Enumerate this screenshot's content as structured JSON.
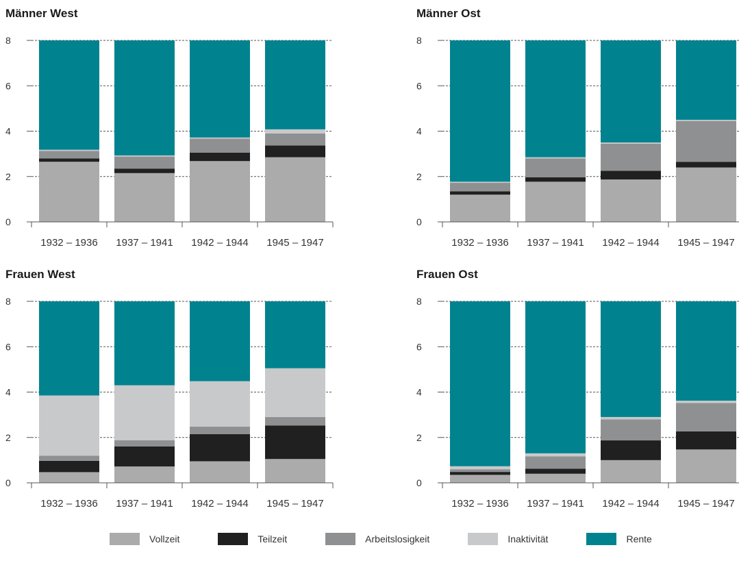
{
  "colors": {
    "Vollzeit": "#ababab",
    "Teilzeit": "#202020",
    "Arbeitslosigkeit": "#8f9092",
    "Inaktivität": "#c8c9ca",
    "Rente": "#00838f"
  },
  "legend": [
    "Vollzeit",
    "Teilzeit",
    "Arbeitslosigkeit",
    "Inaktivität",
    "Rente"
  ],
  "chart_data": [
    {
      "type": "bar",
      "stacked": true,
      "title": "Männer West",
      "categories": [
        "1932 – 1936",
        "1937 – 1941",
        "1942 – 1944",
        "1945 – 1947"
      ],
      "ylim": [
        0,
        8
      ],
      "yticks": [
        "0",
        "2",
        "4",
        "6",
        "8"
      ],
      "grid": true,
      "series": [
        {
          "name": "Vollzeit",
          "values": [
            2.65,
            2.15,
            2.68,
            2.85
          ]
        },
        {
          "name": "Teilzeit",
          "values": [
            0.15,
            0.2,
            0.37,
            0.52
          ]
        },
        {
          "name": "Arbeitslosigkeit",
          "values": [
            0.33,
            0.53,
            0.62,
            0.53
          ]
        },
        {
          "name": "Inaktivität",
          "values": [
            0.05,
            0.05,
            0.05,
            0.18
          ]
        },
        {
          "name": "Rente",
          "values": [
            4.82,
            5.07,
            4.28,
            3.92
          ]
        }
      ]
    },
    {
      "type": "bar",
      "stacked": true,
      "title": "Männer Ost",
      "categories": [
        "1932 – 1936",
        "1937 – 1941",
        "1942 – 1944",
        "1945 – 1947"
      ],
      "ylim": [
        0,
        8
      ],
      "yticks": [
        "0",
        "2",
        "4",
        "6",
        "8"
      ],
      "grid": true,
      "series": [
        {
          "name": "Vollzeit",
          "values": [
            1.2,
            1.77,
            1.87,
            2.4
          ]
        },
        {
          "name": "Teilzeit",
          "values": [
            0.15,
            0.2,
            0.38,
            0.25
          ]
        },
        {
          "name": "Arbeitslosigkeit",
          "values": [
            0.37,
            0.83,
            1.2,
            1.8
          ]
        },
        {
          "name": "Inaktivität",
          "values": [
            0.05,
            0.05,
            0.05,
            0.05
          ]
        },
        {
          "name": "Rente",
          "values": [
            6.23,
            5.15,
            4.5,
            3.5
          ]
        }
      ]
    },
    {
      "type": "bar",
      "stacked": true,
      "title": "Frauen West",
      "categories": [
        "1932 – 1936",
        "1937 – 1941",
        "1942 – 1944",
        "1945 – 1947"
      ],
      "ylim": [
        0,
        8
      ],
      "yticks": [
        "0",
        "2",
        "4",
        "6",
        "8"
      ],
      "grid": true,
      "series": [
        {
          "name": "Vollzeit",
          "values": [
            0.47,
            0.72,
            0.95,
            1.05
          ]
        },
        {
          "name": "Teilzeit",
          "values": [
            0.5,
            0.88,
            1.2,
            1.48
          ]
        },
        {
          "name": "Arbeitslosigkeit",
          "values": [
            0.23,
            0.28,
            0.33,
            0.37
          ]
        },
        {
          "name": "Inaktivität",
          "values": [
            2.65,
            2.42,
            2.0,
            2.15
          ]
        },
        {
          "name": "Rente",
          "values": [
            4.15,
            3.7,
            3.52,
            2.95
          ]
        }
      ]
    },
    {
      "type": "bar",
      "stacked": true,
      "title": "Frauen Ost",
      "categories": [
        "1932 – 1936",
        "1937 – 1941",
        "1942 – 1944",
        "1945 – 1947"
      ],
      "ylim": [
        0,
        8
      ],
      "yticks": [
        "0",
        "2",
        "4",
        "6",
        "8"
      ],
      "grid": true,
      "series": [
        {
          "name": "Vollzeit",
          "values": [
            0.35,
            0.4,
            1.0,
            1.47
          ]
        },
        {
          "name": "Teilzeit",
          "values": [
            0.13,
            0.22,
            0.87,
            0.8
          ]
        },
        {
          "name": "Arbeitslosigkeit",
          "values": [
            0.12,
            0.55,
            0.93,
            1.25
          ]
        },
        {
          "name": "Inaktivität",
          "values": [
            0.13,
            0.13,
            0.1,
            0.1
          ]
        },
        {
          "name": "Rente",
          "values": [
            7.27,
            6.7,
            5.1,
            4.38
          ]
        }
      ]
    }
  ]
}
